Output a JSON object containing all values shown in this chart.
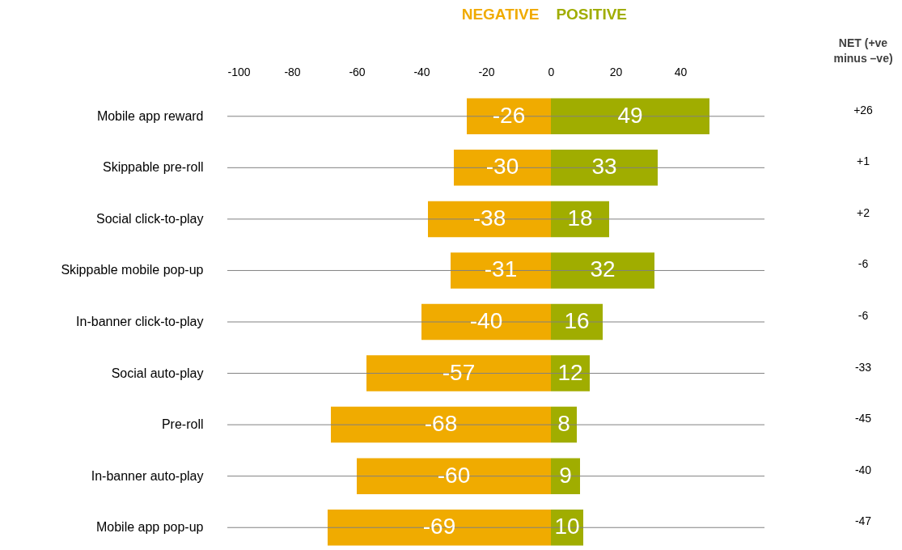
{
  "chart_data": {
    "type": "bar",
    "orientation": "horizontal",
    "stacked": true,
    "legend": "top",
    "data_labels": true,
    "categories": [
      "Mobile app reward",
      "Skippable pre-roll",
      "Social click-to-play",
      "Skippable mobile pop-up",
      "In-banner click-to-play",
      "Social auto-play",
      "Pre-roll",
      "In-banner auto-play",
      "Mobile app pop-up"
    ],
    "series": [
      {
        "name": "NEGATIVE",
        "color": "#f0ab00",
        "values": [
          -26,
          -30,
          -38,
          -31,
          -40,
          -57,
          -68,
          -60,
          -69
        ]
      },
      {
        "name": "POSITIVE",
        "color": "#a0ad00",
        "values": [
          49,
          33,
          18,
          32,
          16,
          12,
          8,
          9,
          10
        ]
      }
    ],
    "xlim": [
      -100,
      66
    ],
    "xticks": [
      -100,
      -80,
      -60,
      -40,
      -20,
      0,
      20,
      40
    ],
    "annotations": [
      "NET (+ve minus –ve)",
      "+26",
      "+1",
      "+2",
      "-6",
      "-6",
      "-33",
      "-45",
      "-40",
      "-47"
    ]
  }
}
